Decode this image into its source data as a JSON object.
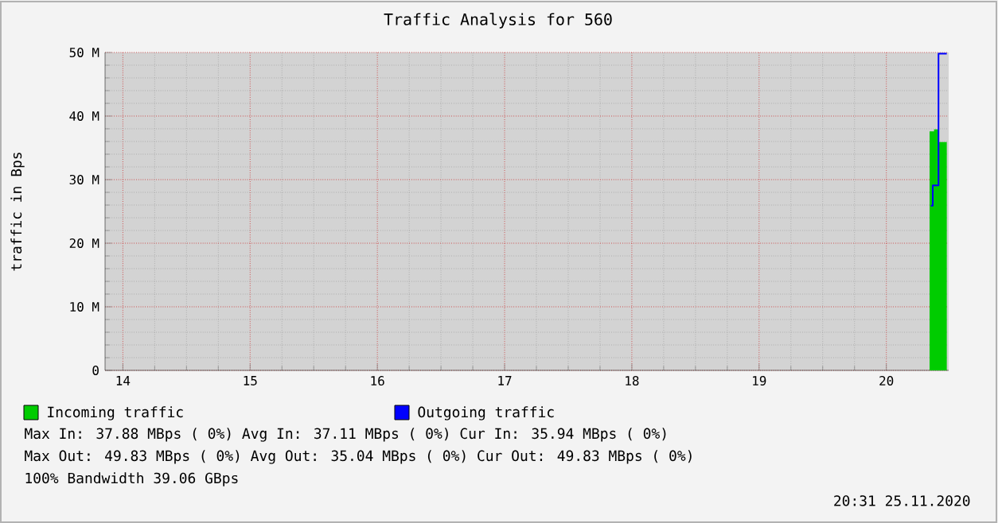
{
  "chart_data": {
    "type": "area",
    "title": "Traffic Analysis for 560",
    "ylabel": "traffic in Bps",
    "xlim": [
      13.86,
      20.49
    ],
    "xticks": [
      14,
      15,
      16,
      17,
      18,
      19,
      20
    ],
    "ylim": [
      0,
      50
    ],
    "yticks": [
      0,
      {
        "value": 10,
        "label": "10 M"
      },
      {
        "value": 20,
        "label": "20 M"
      },
      {
        "value": 30,
        "label": "30 M"
      },
      {
        "value": 40,
        "label": "40 M"
      },
      {
        "value": 50,
        "label": "50 M"
      }
    ],
    "grid": true,
    "legend": "bottom",
    "series": [
      {
        "name": "Incoming traffic",
        "color": "#00cc00",
        "x": [
          20.34,
          20.375,
          20.41,
          20.475
        ],
        "values": [
          37.6,
          37.9,
          35.9,
          35.9
        ]
      },
      {
        "name": "Outgoing traffic",
        "type": "step",
        "color": "#0000ff",
        "x": [
          20.35,
          20.365,
          20.41,
          20.475
        ],
        "values": [
          25.9,
          29.1,
          49.8,
          49.8
        ]
      }
    ],
    "annotations": [
      "Max In:  37.88 MBps ( 0%)  Avg In:  37.11 MBps ( 0%)  Cur In:  35.94 MBps ( 0%)",
      "Max Out: 49.83 MBps ( 0%)  Avg Out: 35.04 MBps ( 0%)  Cur Out: 49.83 MBps ( 0%)",
      "100% Bandwidth 39.06 GBps",
      "20:31 25.11.2020"
    ]
  }
}
